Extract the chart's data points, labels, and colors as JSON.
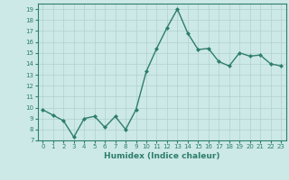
{
  "x": [
    0,
    1,
    2,
    3,
    4,
    5,
    6,
    7,
    8,
    9,
    10,
    11,
    12,
    13,
    14,
    15,
    16,
    17,
    18,
    19,
    20,
    21,
    22,
    23
  ],
  "y": [
    9.8,
    9.3,
    8.8,
    7.3,
    9.0,
    9.2,
    8.2,
    9.2,
    8.0,
    9.8,
    13.3,
    15.4,
    17.3,
    19.0,
    16.8,
    15.3,
    15.4,
    14.2,
    13.8,
    15.0,
    14.7,
    14.8,
    14.0,
    13.8
  ],
  "line_color": "#2e7d6e",
  "marker": "D",
  "marker_size": 2.0,
  "bg_color": "#cce9e7",
  "grid_color": "#b0d0ce",
  "xlabel": "Humidex (Indice chaleur)",
  "ylim": [
    7,
    19.5
  ],
  "yticks": [
    7,
    8,
    9,
    10,
    11,
    12,
    13,
    14,
    15,
    16,
    17,
    18,
    19
  ],
  "xticks": [
    0,
    1,
    2,
    3,
    4,
    5,
    6,
    7,
    8,
    9,
    10,
    11,
    12,
    13,
    14,
    15,
    16,
    17,
    18,
    19,
    20,
    21,
    22,
    23
  ],
  "xlim": [
    -0.5,
    23.5
  ],
  "tick_color": "#2e7d6e",
  "label_color": "#2e7d6e",
  "line_width": 1.0,
  "tick_fontsize": 5.0,
  "xlabel_fontsize": 6.5
}
